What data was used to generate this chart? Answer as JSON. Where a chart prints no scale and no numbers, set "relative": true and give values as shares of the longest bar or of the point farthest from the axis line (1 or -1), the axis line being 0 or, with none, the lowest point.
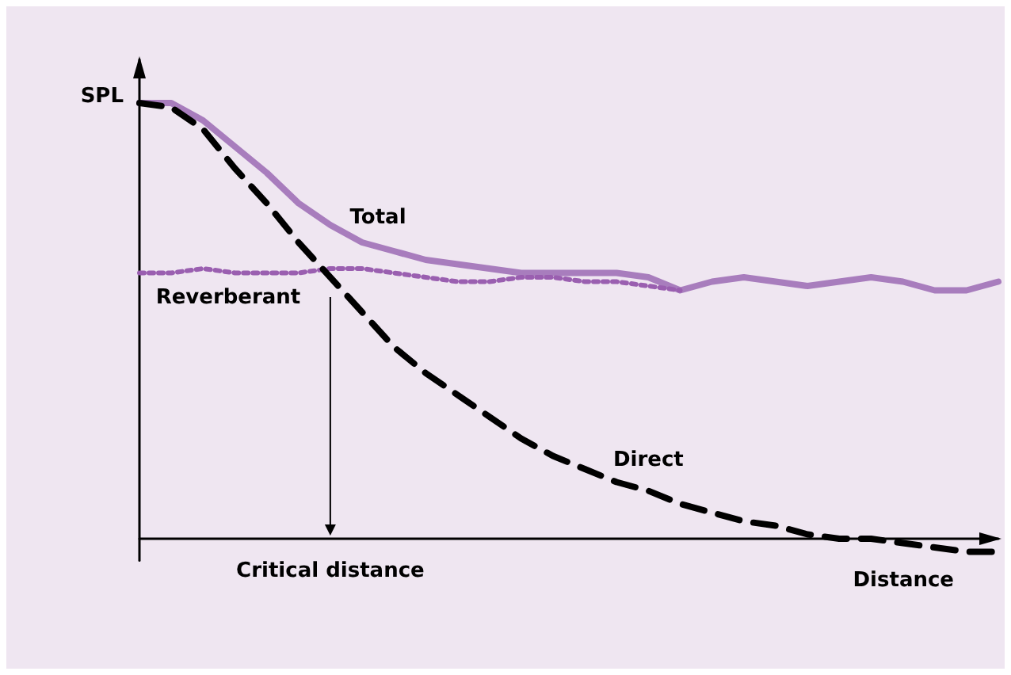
{
  "chart_data": {
    "type": "line",
    "relative": true,
    "xlabel": "Distance",
    "ylabel": "SPL",
    "legend": false,
    "grid": false,
    "annotations": [
      "Critical distance"
    ],
    "categories": [
      null,
      null,
      null,
      null,
      null,
      null,
      null,
      null,
      null,
      null,
      null,
      null,
      null,
      null,
      null,
      null,
      null,
      null,
      null,
      null,
      null,
      null,
      null,
      null,
      null,
      null,
      null,
      null
    ],
    "series": [
      {
        "name": "Total",
        "color": "#a87dbd",
        "line_style": "solid",
        "values": [
          1.0,
          1.0,
          0.96,
          0.9,
          0.84,
          0.77,
          0.72,
          0.68,
          0.66,
          0.64,
          0.63,
          0.62,
          0.61,
          0.61,
          0.61,
          0.61,
          0.6,
          0.57,
          0.59,
          0.6,
          0.59,
          0.58,
          0.59,
          0.6,
          0.59,
          0.57,
          0.57,
          0.59
        ]
      },
      {
        "name": "Reverberant",
        "color": "#9a5fb0",
        "line_style": "dotted",
        "values": [
          0.61,
          0.61,
          0.62,
          0.61,
          0.61,
          0.61,
          0.62,
          0.62,
          0.61,
          0.6,
          0.59,
          0.59,
          0.6,
          0.6,
          0.59,
          0.59,
          0.58,
          0.57,
          null,
          null,
          null,
          null,
          null,
          null,
          null,
          null,
          null,
          null
        ]
      },
      {
        "name": "Direct",
        "color": "#000000",
        "line_style": "dashed",
        "values": [
          1.0,
          0.99,
          0.94,
          0.85,
          0.77,
          0.68,
          0.6,
          0.52,
          0.44,
          0.38,
          0.33,
          0.28,
          0.23,
          0.19,
          0.16,
          0.13,
          0.11,
          0.08,
          0.06,
          0.04,
          0.03,
          0.01,
          0.0,
          0.0,
          -0.01,
          -0.02,
          -0.03,
          -0.03
        ]
      }
    ]
  }
}
